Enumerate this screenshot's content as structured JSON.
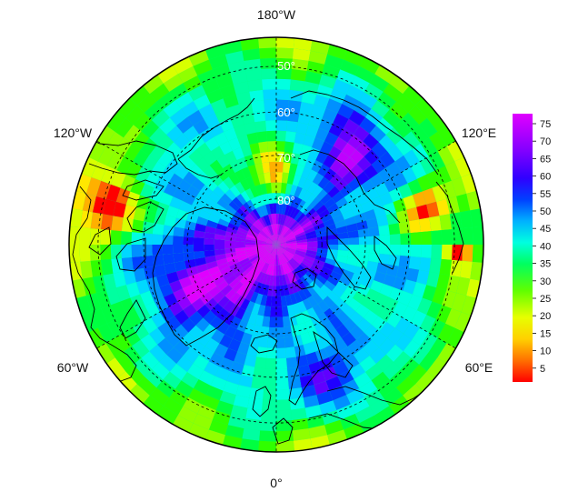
{
  "map": {
    "projection": "north-polar-stereographic",
    "colorscale": [
      "#ff0000",
      "#ff6000",
      "#ffb000",
      "#ffe800",
      "#d8ff00",
      "#90ff00",
      "#30ff00",
      "#00ff40",
      "#00ffa0",
      "#00ffe0",
      "#00d8ff",
      "#0090ff",
      "#0040ff",
      "#2000ff",
      "#6000ff",
      "#9000ff",
      "#c000ff",
      "#e000ff"
    ],
    "longitude_labels": {
      "top": "180°W",
      "upper_left": "120°W",
      "upper_right": "120°E",
      "lower_left": "60°W",
      "lower_right": "60°E",
      "bottom": "0°"
    },
    "latitude_labels": [
      "50°",
      "60°",
      "70°",
      "80°"
    ],
    "colorbar": {
      "ticks": [
        "75",
        "70",
        "65",
        "60",
        "55",
        "50",
        "45",
        "40",
        "35",
        "30",
        "25",
        "20",
        "15",
        "10",
        "5"
      ]
    }
  }
}
